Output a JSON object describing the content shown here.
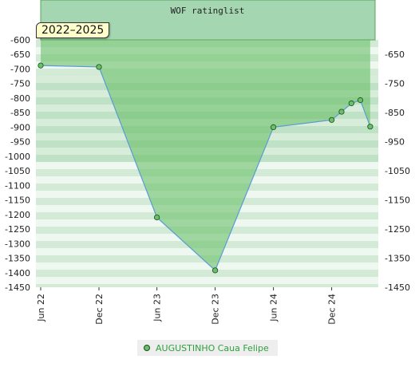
{
  "chart_data": {
    "type": "area",
    "title": "WOF ratinglist",
    "period": "2022–2025",
    "x_ticks": [
      "Jun 22",
      "Dec 22",
      "Jun 23",
      "Dec 23",
      "Jun 24",
      "Dec 24"
    ],
    "y_left_ticks": [
      "-600",
      "-650",
      "-700",
      "-750",
      "-800",
      "-850",
      "-900",
      "-950",
      "-1000",
      "-1050",
      "-1100",
      "-1150",
      "-1200",
      "-1250",
      "-1300",
      "-1350",
      "-1400",
      "-1450"
    ],
    "y_right_ticks": [
      "-650",
      "-750",
      "-850",
      "-950",
      "-1050",
      "-1150",
      "-1250",
      "-1350",
      "-1450"
    ],
    "ylim": [
      -1450,
      -600
    ],
    "series": [
      {
        "name": "AUGUSTINHO Caua Felipe",
        "points": [
          {
            "x": "2022-06-01",
            "y": -688
          },
          {
            "x": "2022-12-01",
            "y": -693
          },
          {
            "x": "2023-06-01",
            "y": -1210
          },
          {
            "x": "2023-12-01",
            "y": -1392
          },
          {
            "x": "2024-06-01",
            "y": -900
          },
          {
            "x": "2024-12-01",
            "y": -875
          },
          {
            "x": "2025-01-01",
            "y": -847
          },
          {
            "x": "2025-02-01",
            "y": -818
          },
          {
            "x": "2025-03-01",
            "y": -807
          },
          {
            "x": "2025-04-01",
            "y": -898
          }
        ]
      }
    ],
    "colors": {
      "area": "#6abf69",
      "line": "#5b9bd5",
      "marker": "#6abf69",
      "legend_text": "#2e9f3e"
    },
    "grid": true
  }
}
